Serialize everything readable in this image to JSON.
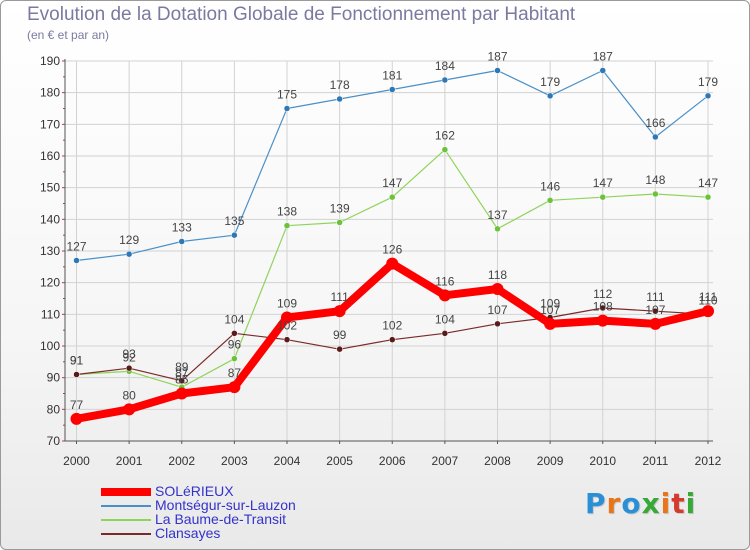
{
  "title": "Evolution de la Dotation Globale de Fonctionnement par Habitant",
  "subtitle": "(en € et par an)",
  "logo": {
    "text": "Proxiti",
    "colors": [
      "#2b8fd6",
      "#e8751a",
      "#2b8fd6",
      "#38a836",
      "#e8751a",
      "#d43a2e",
      "#38a836"
    ]
  },
  "chart_data": {
    "type": "line",
    "x": [
      "2000",
      "2001",
      "2002",
      "2003",
      "2004",
      "2005",
      "2006",
      "2007",
      "2008",
      "2009",
      "2010",
      "2011",
      "2012"
    ],
    "ylim": [
      70,
      190
    ],
    "yticks": [
      70,
      80,
      90,
      100,
      110,
      120,
      130,
      140,
      150,
      160,
      170,
      180,
      190
    ],
    "grid": true,
    "legend_position": "bottom-left",
    "series": [
      {
        "name": "Montségur-sur-Lauzon",
        "color": "#4a90c8",
        "marker": "#2f78b6",
        "width": 1.2,
        "values": [
          127,
          129,
          133,
          135,
          175,
          178,
          181,
          184,
          187,
          179,
          187,
          166,
          179
        ],
        "labels": [
          "127",
          "129",
          "133",
          "135",
          "175",
          "178",
          "181",
          "184",
          "187",
          "179",
          "187",
          "166",
          "179"
        ]
      },
      {
        "name": "La Baume-de-Transit",
        "color": "#8fd45a",
        "marker": "#6cc23a",
        "width": 1.2,
        "values": [
          91,
          92,
          87,
          96,
          138,
          139,
          147,
          162,
          137,
          146,
          147,
          148,
          147
        ],
        "labels": [
          "91",
          "92",
          "87",
          "96",
          "138",
          "139",
          "147",
          "162",
          "137",
          "146",
          "147",
          "148",
          "147"
        ]
      },
      {
        "name": "Clansayes",
        "color": "#7a2a2a",
        "marker": "#5a1a1a",
        "width": 1.2,
        "values": [
          91,
          93,
          89,
          104,
          102,
          99,
          102,
          104,
          107,
          109,
          112,
          111,
          110
        ],
        "labels": [
          "91",
          "93",
          "89",
          "104",
          "102",
          "99",
          "102",
          "104",
          "107",
          "109",
          "112",
          "111",
          "110"
        ]
      },
      {
        "name": "SOLéRIEUX",
        "color": "#ff0000",
        "marker": "#ff0000",
        "width": 8,
        "values": [
          77,
          80,
          85,
          87,
          109,
          111,
          126,
          116,
          118,
          107,
          108,
          107,
          111
        ],
        "labels": [
          "77",
          "80",
          "85",
          "87",
          "109",
          "111",
          "126",
          "116",
          "118",
          "107",
          "108",
          "107",
          "111"
        ]
      }
    ],
    "legend": [
      {
        "name": "SOLéRIEUX",
        "color": "#ff0000",
        "width": 8
      },
      {
        "name": "Montségur-sur-Lauzon",
        "color": "#4a90c8",
        "width": 2
      },
      {
        "name": "La Baume-de-Transit",
        "color": "#8fd45a",
        "width": 2
      },
      {
        "name": "Clansayes",
        "color": "#7a2a2a",
        "width": 2
      }
    ]
  }
}
